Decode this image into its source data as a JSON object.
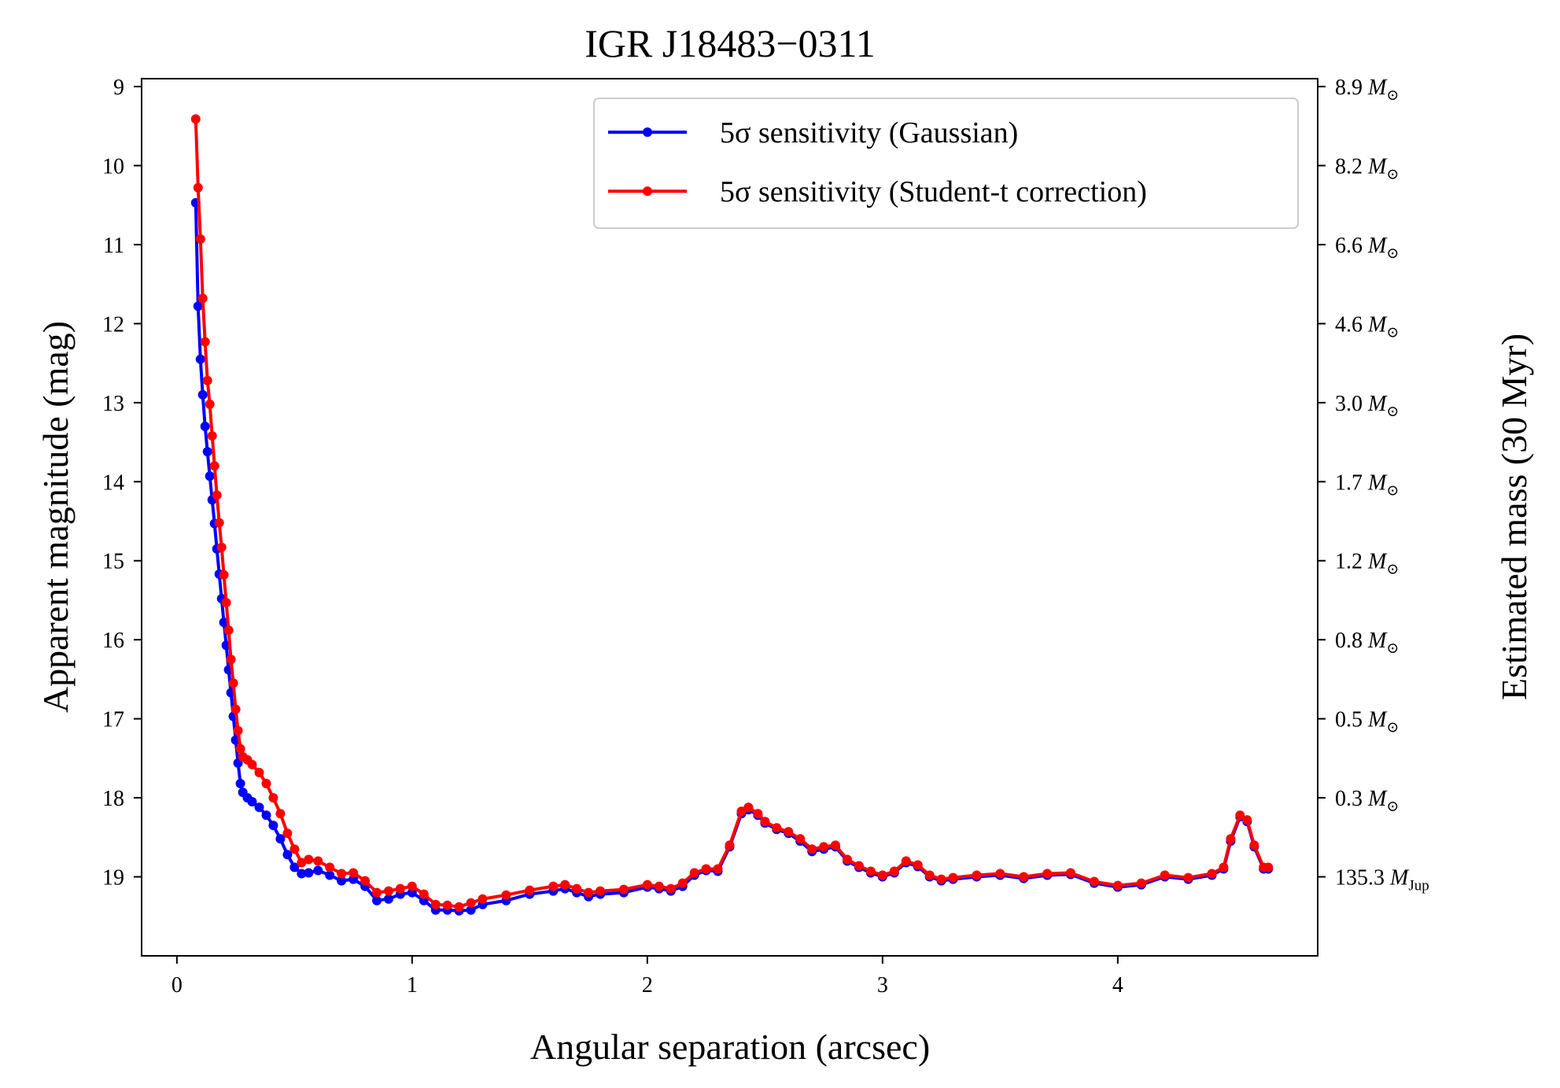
{
  "chart_data": {
    "type": "line",
    "title": "IGR J18483−0311",
    "xlabel": "Angular separation (arcsec)",
    "ylabel": "Apparent magnitude (mag)",
    "ylabel_right": "Estimated mass (30 Myr)",
    "xlim": [
      -0.15,
      4.85
    ],
    "ylim": [
      20.0,
      8.9
    ],
    "y_inverted": true,
    "x_ticks": [
      0,
      1,
      2,
      3,
      4
    ],
    "x_tick_labels": [
      "0",
      "1",
      "2",
      "3",
      "4"
    ],
    "y_ticks": [
      9,
      10,
      11,
      12,
      13,
      14,
      15,
      16,
      17,
      18,
      19
    ],
    "y_tick_labels": [
      "9",
      "10",
      "11",
      "12",
      "13",
      "14",
      "15",
      "16",
      "17",
      "18",
      "19"
    ],
    "right_ticks": [
      {
        "mag": 9,
        "value": "8.9",
        "unit": "M",
        "sub": "⊙"
      },
      {
        "mag": 10,
        "value": "8.2",
        "unit": "M",
        "sub": "⊙"
      },
      {
        "mag": 11,
        "value": "6.6",
        "unit": "M",
        "sub": "⊙"
      },
      {
        "mag": 12,
        "value": "4.6",
        "unit": "M",
        "sub": "⊙"
      },
      {
        "mag": 13,
        "value": "3.0",
        "unit": "M",
        "sub": "⊙"
      },
      {
        "mag": 14,
        "value": "1.7",
        "unit": "M",
        "sub": "⊙"
      },
      {
        "mag": 15,
        "value": "1.2",
        "unit": "M",
        "sub": "⊙"
      },
      {
        "mag": 16,
        "value": "0.8",
        "unit": "M",
        "sub": "⊙"
      },
      {
        "mag": 17,
        "value": "0.5",
        "unit": "M",
        "sub": "⊙"
      },
      {
        "mag": 18,
        "value": "0.3",
        "unit": "M",
        "sub": "⊙"
      },
      {
        "mag": 19,
        "value": "135.3",
        "unit": "M",
        "sub": "Jup"
      }
    ],
    "legend": {
      "location": "upper right",
      "entries": [
        {
          "sym": "5σ",
          "label": " sensitivity (Gaussian)",
          "color": "#0000ff"
        },
        {
          "sym": "5σ",
          "label": " sensitivity (Student-t correction)",
          "color": "#ff0000"
        }
      ]
    },
    "series": [
      {
        "name": "5σ sensitivity (Gaussian)",
        "color": "#0000ff",
        "points": [
          [
            0.08,
            10.47
          ],
          [
            0.09,
            11.78
          ],
          [
            0.1,
            12.45
          ],
          [
            0.11,
            12.9
          ],
          [
            0.12,
            13.3
          ],
          [
            0.13,
            13.62
          ],
          [
            0.14,
            13.93
          ],
          [
            0.15,
            14.23
          ],
          [
            0.16,
            14.53
          ],
          [
            0.17,
            14.85
          ],
          [
            0.18,
            15.17
          ],
          [
            0.19,
            15.48
          ],
          [
            0.2,
            15.78
          ],
          [
            0.21,
            16.07
          ],
          [
            0.22,
            16.38
          ],
          [
            0.23,
            16.67
          ],
          [
            0.24,
            16.97
          ],
          [
            0.25,
            17.27
          ],
          [
            0.26,
            17.56
          ],
          [
            0.27,
            17.82
          ],
          [
            0.28,
            17.93
          ],
          [
            0.3,
            18.0
          ],
          [
            0.32,
            18.05
          ],
          [
            0.35,
            18.12
          ],
          [
            0.38,
            18.22
          ],
          [
            0.41,
            18.35
          ],
          [
            0.44,
            18.52
          ],
          [
            0.47,
            18.72
          ],
          [
            0.5,
            18.88
          ],
          [
            0.53,
            18.96
          ],
          [
            0.56,
            18.95
          ],
          [
            0.6,
            18.92
          ],
          [
            0.65,
            18.98
          ],
          [
            0.7,
            19.05
          ],
          [
            0.75,
            19.03
          ],
          [
            0.8,
            19.12
          ],
          [
            0.85,
            19.3
          ],
          [
            0.9,
            19.28
          ],
          [
            0.95,
            19.22
          ],
          [
            1.0,
            19.2
          ],
          [
            1.05,
            19.3
          ],
          [
            1.1,
            19.42
          ],
          [
            1.15,
            19.42
          ],
          [
            1.2,
            19.43
          ],
          [
            1.25,
            19.42
          ],
          [
            1.3,
            19.35
          ],
          [
            1.4,
            19.3
          ],
          [
            1.5,
            19.22
          ],
          [
            1.6,
            19.18
          ],
          [
            1.65,
            19.15
          ],
          [
            1.7,
            19.2
          ],
          [
            1.75,
            19.25
          ],
          [
            1.8,
            19.22
          ],
          [
            1.9,
            19.2
          ],
          [
            2.0,
            19.13
          ],
          [
            2.05,
            19.15
          ],
          [
            2.1,
            19.18
          ],
          [
            2.15,
            19.12
          ],
          [
            2.2,
            18.98
          ],
          [
            2.25,
            18.92
          ],
          [
            2.3,
            18.93
          ],
          [
            2.35,
            18.62
          ],
          [
            2.4,
            18.2
          ],
          [
            2.43,
            18.15
          ],
          [
            2.47,
            18.22
          ],
          [
            2.5,
            18.32
          ],
          [
            2.55,
            18.4
          ],
          [
            2.6,
            18.45
          ],
          [
            2.65,
            18.55
          ],
          [
            2.7,
            18.68
          ],
          [
            2.75,
            18.65
          ],
          [
            2.8,
            18.62
          ],
          [
            2.85,
            18.8
          ],
          [
            2.9,
            18.88
          ],
          [
            2.95,
            18.95
          ],
          [
            3.0,
            19.0
          ],
          [
            3.05,
            18.95
          ],
          [
            3.1,
            18.82
          ],
          [
            3.15,
            18.87
          ],
          [
            3.2,
            19.0
          ],
          [
            3.25,
            19.05
          ],
          [
            3.3,
            19.03
          ],
          [
            3.4,
            19.0
          ],
          [
            3.5,
            18.98
          ],
          [
            3.6,
            19.02
          ],
          [
            3.7,
            18.98
          ],
          [
            3.8,
            18.97
          ],
          [
            3.9,
            19.08
          ],
          [
            4.0,
            19.13
          ],
          [
            4.1,
            19.1
          ],
          [
            4.2,
            19.0
          ],
          [
            4.3,
            19.03
          ],
          [
            4.4,
            18.98
          ],
          [
            4.45,
            18.9
          ],
          [
            4.48,
            18.55
          ],
          [
            4.52,
            18.24
          ],
          [
            4.55,
            18.3
          ],
          [
            4.58,
            18.62
          ],
          [
            4.62,
            18.9
          ],
          [
            4.64,
            18.9
          ]
        ]
      },
      {
        "name": "5σ sensitivity (Student-t correction)",
        "color": "#ff0000",
        "points": [
          [
            0.08,
            9.41
          ],
          [
            0.09,
            10.28
          ],
          [
            0.1,
            10.93
          ],
          [
            0.11,
            11.68
          ],
          [
            0.12,
            12.23
          ],
          [
            0.13,
            12.72
          ],
          [
            0.14,
            13.02
          ],
          [
            0.15,
            13.42
          ],
          [
            0.16,
            13.8
          ],
          [
            0.17,
            14.17
          ],
          [
            0.18,
            14.52
          ],
          [
            0.19,
            14.83
          ],
          [
            0.2,
            15.18
          ],
          [
            0.21,
            15.53
          ],
          [
            0.22,
            15.88
          ],
          [
            0.23,
            16.25
          ],
          [
            0.24,
            16.55
          ],
          [
            0.25,
            16.88
          ],
          [
            0.26,
            17.15
          ],
          [
            0.27,
            17.38
          ],
          [
            0.28,
            17.48
          ],
          [
            0.3,
            17.52
          ],
          [
            0.32,
            17.58
          ],
          [
            0.35,
            17.68
          ],
          [
            0.38,
            17.82
          ],
          [
            0.41,
            18.0
          ],
          [
            0.44,
            18.2
          ],
          [
            0.47,
            18.45
          ],
          [
            0.5,
            18.65
          ],
          [
            0.53,
            18.82
          ],
          [
            0.56,
            18.78
          ],
          [
            0.6,
            18.8
          ],
          [
            0.65,
            18.88
          ],
          [
            0.7,
            18.96
          ],
          [
            0.75,
            18.95
          ],
          [
            0.8,
            19.05
          ],
          [
            0.85,
            19.2
          ],
          [
            0.9,
            19.18
          ],
          [
            0.95,
            19.15
          ],
          [
            1.0,
            19.12
          ],
          [
            1.05,
            19.22
          ],
          [
            1.1,
            19.35
          ],
          [
            1.15,
            19.36
          ],
          [
            1.2,
            19.38
          ],
          [
            1.25,
            19.33
          ],
          [
            1.3,
            19.28
          ],
          [
            1.4,
            19.23
          ],
          [
            1.5,
            19.17
          ],
          [
            1.6,
            19.12
          ],
          [
            1.65,
            19.1
          ],
          [
            1.7,
            19.15
          ],
          [
            1.75,
            19.2
          ],
          [
            1.8,
            19.18
          ],
          [
            1.9,
            19.16
          ],
          [
            2.0,
            19.1
          ],
          [
            2.05,
            19.12
          ],
          [
            2.1,
            19.15
          ],
          [
            2.15,
            19.08
          ],
          [
            2.2,
            18.95
          ],
          [
            2.25,
            18.9
          ],
          [
            2.3,
            18.9
          ],
          [
            2.35,
            18.6
          ],
          [
            2.4,
            18.17
          ],
          [
            2.43,
            18.12
          ],
          [
            2.47,
            18.2
          ],
          [
            2.5,
            18.3
          ],
          [
            2.55,
            18.38
          ],
          [
            2.6,
            18.43
          ],
          [
            2.65,
            18.52
          ],
          [
            2.7,
            18.65
          ],
          [
            2.75,
            18.62
          ],
          [
            2.8,
            18.6
          ],
          [
            2.85,
            18.78
          ],
          [
            2.9,
            18.86
          ],
          [
            2.95,
            18.93
          ],
          [
            3.0,
            18.98
          ],
          [
            3.05,
            18.93
          ],
          [
            3.1,
            18.8
          ],
          [
            3.15,
            18.85
          ],
          [
            3.2,
            18.98
          ],
          [
            3.25,
            19.03
          ],
          [
            3.3,
            19.01
          ],
          [
            3.4,
            18.98
          ],
          [
            3.5,
            18.96
          ],
          [
            3.6,
            19.0
          ],
          [
            3.7,
            18.96
          ],
          [
            3.8,
            18.95
          ],
          [
            3.9,
            19.06
          ],
          [
            4.0,
            19.11
          ],
          [
            4.1,
            19.08
          ],
          [
            4.2,
            18.98
          ],
          [
            4.3,
            19.01
          ],
          [
            4.4,
            18.96
          ],
          [
            4.45,
            18.88
          ],
          [
            4.48,
            18.52
          ],
          [
            4.52,
            18.22
          ],
          [
            4.55,
            18.28
          ],
          [
            4.58,
            18.6
          ],
          [
            4.62,
            18.88
          ],
          [
            4.64,
            18.88
          ]
        ]
      }
    ]
  }
}
